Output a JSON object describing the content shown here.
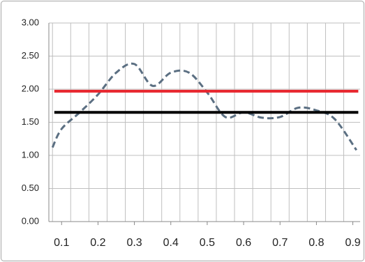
{
  "chart_data": {
    "type": "line",
    "xlim": [
      0.065,
      0.92
    ],
    "ylim": [
      0,
      3
    ],
    "xticks": [
      0.1,
      0.2,
      0.3,
      0.4,
      0.5,
      0.6,
      0.7,
      0.8,
      0.9
    ],
    "xgrid": [
      0.075,
      0.125,
      0.175,
      0.225,
      0.275,
      0.325,
      0.375,
      0.425,
      0.475,
      0.525,
      0.575,
      0.625,
      0.675,
      0.725,
      0.775,
      0.825,
      0.875
    ],
    "yticks": [
      {
        "value": 0,
        "label": "0.00"
      },
      {
        "value": 0.5,
        "label": "0.50"
      },
      {
        "value": 1,
        "label": "1.00"
      },
      {
        "value": 1.5,
        "label": "1.50"
      },
      {
        "value": 2,
        "label": "2.00"
      },
      {
        "value": 2.5,
        "label": "2.50"
      },
      {
        "value": 3,
        "label": "3.00"
      }
    ],
    "grid": true,
    "series": [
      {
        "color": "#5b6f82",
        "dashed": true,
        "smooth": true,
        "x": [
          0.075,
          0.1,
          0.15,
          0.2,
          0.25,
          0.3,
          0.35,
          0.4,
          0.45,
          0.5,
          0.55,
          0.6,
          0.65,
          0.7,
          0.75,
          0.8,
          0.85,
          0.91
        ],
        "values": [
          1.12,
          1.4,
          1.65,
          1.92,
          2.25,
          2.38,
          2.05,
          2.25,
          2.25,
          1.95,
          1.58,
          1.65,
          1.57,
          1.58,
          1.72,
          1.68,
          1.55,
          1.08
        ]
      },
      {
        "color": "#e8262e",
        "x": [
          0.08,
          0.915
        ],
        "values": [
          1.97,
          1.97
        ]
      },
      {
        "color": "#000000",
        "x": [
          0.08,
          0.915
        ],
        "values": [
          1.65,
          1.65
        ]
      }
    ]
  }
}
